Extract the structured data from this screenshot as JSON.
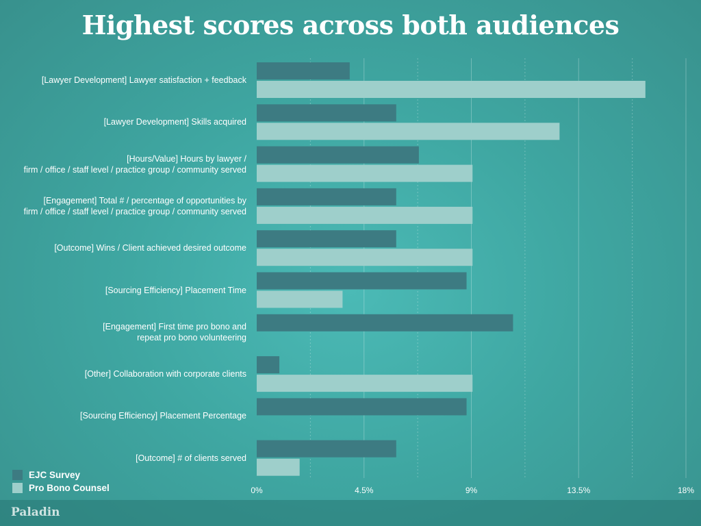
{
  "chart_data": {
    "type": "bar",
    "orientation": "horizontal",
    "title": "Highest scores across both audiences",
    "categories": [
      "[Lawyer Development] Lawyer satisfaction + feedback",
      "[Lawyer Development] Skills acquired",
      "[Hours/Value] Hours by lawyer /\nfirm / office / staff level / practice group / community served",
      "[Engagement] Total # / percentage of opportunities by\nfirm / office / staff level / practice group  / community served",
      "[Outcome] Wins / Client achieved desired outcome",
      "[Sourcing Efficiency] Placement Time",
      "[Engagement] First time pro bono and\nrepeat pro bono volunteering",
      "[Other] Collaboration with corporate clients",
      "[Sourcing Efficiency] Placement Percentage",
      "[Outcome] # of clients served"
    ],
    "series": [
      {
        "name": "EJC Survey",
        "color": "#3d7b82",
        "values": [
          3.9,
          5.85,
          6.8,
          5.85,
          5.85,
          8.8,
          10.75,
          0.95,
          8.8,
          5.85
        ]
      },
      {
        "name": "Pro Bono Counsel",
        "color": "#9ecfcb",
        "values": [
          16.3,
          12.7,
          9.05,
          9.05,
          9.05,
          3.6,
          0,
          9.05,
          0,
          1.8
        ]
      }
    ],
    "xlim": [
      0,
      18
    ],
    "xticks": [
      "0%",
      "4.5%",
      "9%",
      "13.5%",
      "18%"
    ],
    "grid": true,
    "legend_position": "bottom-left"
  },
  "footer": {
    "brand": "Paladin"
  }
}
